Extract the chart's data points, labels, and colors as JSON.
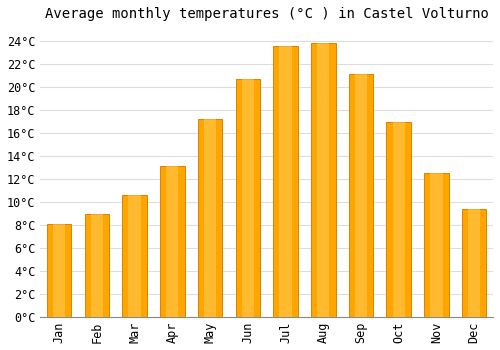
{
  "title": "Average monthly temperatures (°C ) in Castel Volturno",
  "months": [
    "Jan",
    "Feb",
    "Mar",
    "Apr",
    "May",
    "Jun",
    "Jul",
    "Aug",
    "Sep",
    "Oct",
    "Nov",
    "Dec"
  ],
  "values": [
    8.1,
    8.9,
    10.6,
    13.1,
    17.2,
    20.7,
    23.5,
    23.8,
    21.1,
    16.9,
    12.5,
    9.4
  ],
  "bar_color": "#FFA500",
  "bar_edge_color": "#E08000",
  "background_color": "#FFFFFF",
  "plot_bg_color": "#FFFFFF",
  "grid_color": "#DDDDDD",
  "ylim": [
    0,
    25
  ],
  "yticks": [
    0,
    2,
    4,
    6,
    8,
    10,
    12,
    14,
    16,
    18,
    20,
    22,
    24
  ],
  "title_fontsize": 10,
  "tick_fontsize": 8.5,
  "font_family": "monospace"
}
